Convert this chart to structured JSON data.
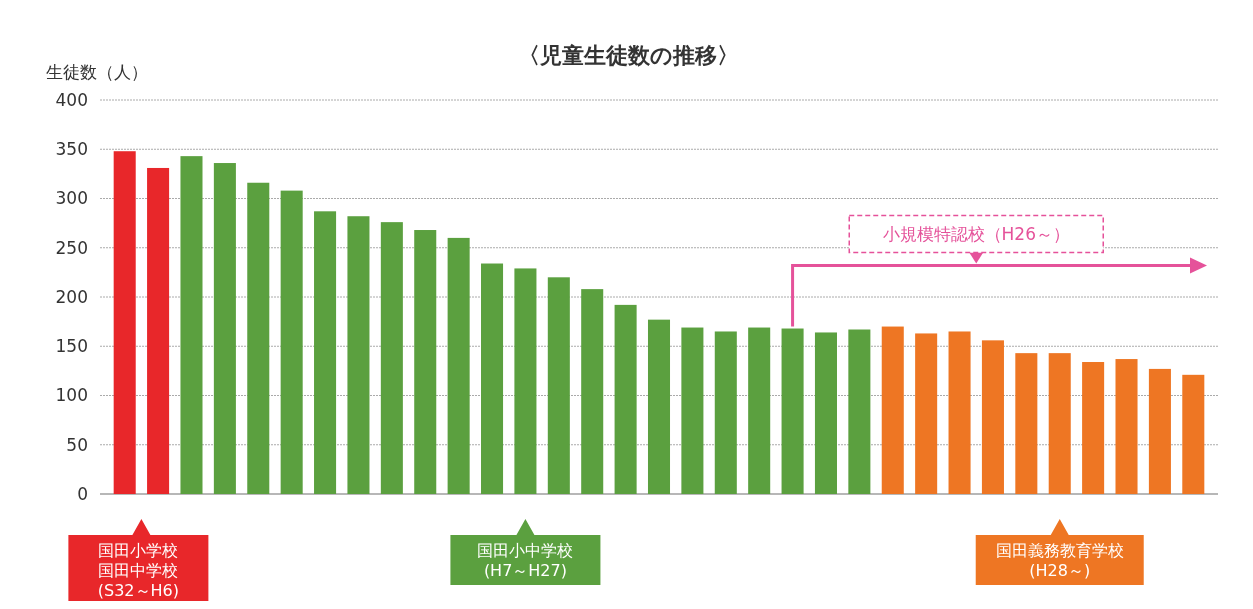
{
  "chart_data": {
    "type": "bar",
    "title": "〈児童生徒数の推移〉",
    "ylabel": "生徒数（人）",
    "categories": [
      null,
      null,
      null,
      null,
      null,
      null,
      null,
      null,
      null,
      null,
      null,
      null,
      null,
      null,
      null,
      null,
      null,
      null,
      null,
      null,
      null,
      null,
      null,
      null,
      null,
      null,
      null,
      null,
      null,
      null,
      null,
      null,
      null
    ],
    "values": [
      348,
      331,
      343,
      336,
      316,
      308,
      287,
      282,
      276,
      268,
      260,
      234,
      229,
      220,
      208,
      192,
      177,
      169,
      165,
      169,
      168,
      164,
      167,
      170,
      163,
      165,
      156,
      143,
      143,
      134,
      137,
      127,
      121
    ],
    "colors": [
      "#e8272a",
      "#e8272a",
      "#5ba03f",
      "#5ba03f",
      "#5ba03f",
      "#5ba03f",
      "#5ba03f",
      "#5ba03f",
      "#5ba03f",
      "#5ba03f",
      "#5ba03f",
      "#5ba03f",
      "#5ba03f",
      "#5ba03f",
      "#5ba03f",
      "#5ba03f",
      "#5ba03f",
      "#5ba03f",
      "#5ba03f",
      "#5ba03f",
      "#5ba03f",
      "#5ba03f",
      "#5ba03f",
      "#ee7623",
      "#ee7623",
      "#ee7623",
      "#ee7623",
      "#ee7623",
      "#ee7623",
      "#ee7623",
      "#ee7623",
      "#ee7623",
      "#ee7623"
    ],
    "ylim": [
      0,
      400
    ],
    "yticks": [
      0,
      50,
      100,
      150,
      200,
      250,
      300,
      350,
      400
    ],
    "grid": "y",
    "annotations": [
      "国田小学校",
      "国田中学校",
      "(S32～H6)",
      "国田小中学校",
      "(H7～H27)",
      "国田義務教育学校",
      "(H28～)",
      "小規模特認校（H26～）"
    ]
  }
}
